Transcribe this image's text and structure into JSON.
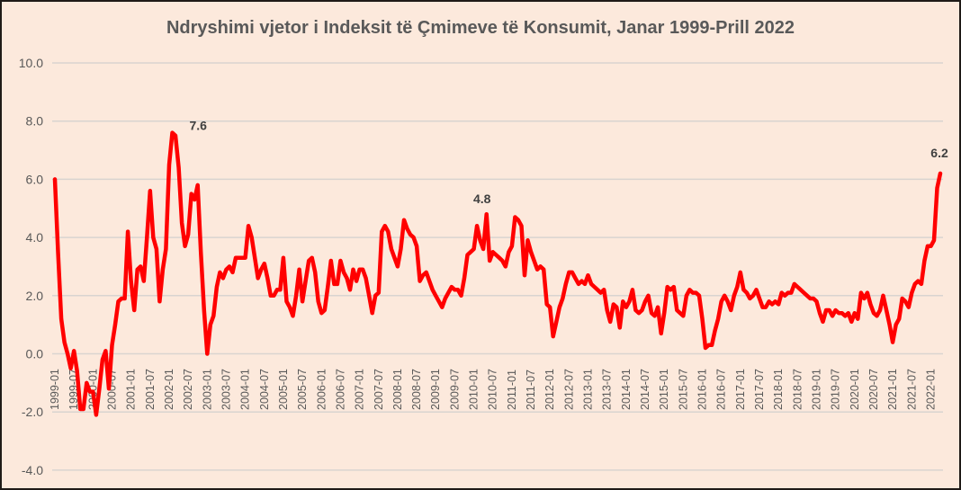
{
  "chart_data": {
    "type": "line",
    "title": "Ndryshimi vjetor i Indeksit të Çmimeve të Konsumit, Janar 1999-Prill 2022",
    "xlabel": "",
    "ylabel": "",
    "ylim": [
      -4.0,
      10.0
    ],
    "yticks": [
      "10.0",
      "8.0",
      "6.0",
      "4.0",
      "2.0",
      "0.0",
      "-2.0",
      "-4.0"
    ],
    "ytick_values": [
      10,
      8,
      6,
      4,
      2,
      0,
      -2,
      -4
    ],
    "grid": true,
    "legend": "none",
    "x_start": "1999-01",
    "x_end": "2022-04",
    "x_frequency": "monthly",
    "xtick_labels": [
      "1999-01",
      "1999-07",
      "2000-01",
      "2000-07",
      "2001-01",
      "2001-07",
      "2002-01",
      "2002-07",
      "2003-01",
      "2003-07",
      "2004-01",
      "2004-07",
      "2005-01",
      "2005-07",
      "2006-01",
      "2006-07",
      "2007-01",
      "2007-07",
      "2008-01",
      "2008-07",
      "2009-01",
      "2009-07",
      "2010-01",
      "2010-07",
      "2011-01",
      "2011-07",
      "2012-01",
      "2012-07",
      "2013-01",
      "2013-07",
      "2014-01",
      "2014-07",
      "2015-01",
      "2015-07",
      "2016-01",
      "2016-07",
      "2017-01",
      "2017-07",
      "2018-01",
      "2018-07",
      "2019-01",
      "2019-07",
      "2020-01",
      "2020-07",
      "2021-01",
      "2021-07",
      "2022-01"
    ],
    "series": [
      {
        "name": "Ndryshimi vjetor i IÇK",
        "color": "#ff0000",
        "values": [
          6.0,
          3.5,
          1.2,
          0.4,
          0.0,
          -0.5,
          0.1,
          -0.6,
          -1.9,
          -1.9,
          -1.0,
          -1.3,
          -1.3,
          -2.1,
          -1.2,
          -0.2,
          0.1,
          -1.2,
          0.3,
          1.0,
          1.8,
          1.9,
          1.9,
          4.2,
          2.5,
          1.5,
          2.9,
          3.0,
          2.5,
          4.0,
          5.6,
          4.0,
          3.6,
          1.8,
          2.9,
          3.6,
          6.5,
          7.6,
          7.5,
          6.4,
          4.5,
          3.7,
          4.1,
          5.5,
          5.3,
          5.8,
          3.5,
          1.5,
          0.0,
          1.0,
          1.3,
          2.3,
          2.8,
          2.6,
          2.9,
          3.0,
          2.8,
          3.3,
          3.3,
          3.3,
          3.3,
          4.4,
          4.0,
          3.3,
          2.6,
          2.9,
          3.1,
          2.6,
          2.0,
          2.0,
          2.2,
          2.2,
          3.3,
          1.8,
          1.6,
          1.3,
          2.0,
          2.9,
          1.8,
          2.5,
          3.2,
          3.3,
          2.8,
          1.8,
          1.4,
          1.5,
          2.3,
          3.2,
          2.4,
          2.4,
          3.2,
          2.8,
          2.6,
          2.2,
          2.9,
          2.5,
          2.9,
          2.9,
          2.6,
          2.0,
          1.4,
          2.0,
          2.1,
          4.2,
          4.4,
          4.2,
          3.6,
          3.3,
          3.0,
          3.6,
          4.6,
          4.3,
          4.1,
          4.0,
          3.7,
          2.5,
          2.7,
          2.8,
          2.5,
          2.2,
          2.0,
          1.8,
          1.6,
          1.9,
          2.1,
          2.3,
          2.2,
          2.2,
          2.0,
          2.6,
          3.4,
          3.5,
          3.6,
          4.4,
          3.9,
          3.6,
          4.8,
          3.2,
          3.5,
          3.4,
          3.3,
          3.2,
          3.0,
          3.5,
          3.7,
          4.7,
          4.6,
          4.4,
          2.7,
          3.9,
          3.5,
          3.2,
          2.9,
          3.0,
          2.9,
          1.7,
          1.6,
          0.6,
          1.1,
          1.6,
          1.9,
          2.4,
          2.8,
          2.8,
          2.6,
          2.4,
          2.5,
          2.4,
          2.7,
          2.4,
          2.3,
          2.2,
          2.1,
          2.2,
          1.5,
          1.1,
          1.7,
          1.6,
          0.9,
          1.8,
          1.6,
          1.8,
          2.2,
          1.5,
          1.4,
          1.5,
          1.8,
          2.0,
          1.4,
          1.3,
          1.6,
          0.7,
          1.4,
          2.3,
          2.2,
          2.3,
          1.5,
          1.4,
          1.3,
          2.0,
          2.2,
          2.1,
          2.1,
          2.0,
          1.2,
          0.2,
          0.3,
          0.3,
          0.8,
          1.2,
          1.8,
          2.0,
          1.8,
          1.5,
          2.0,
          2.3,
          2.8,
          2.2,
          2.1,
          1.9,
          2.0,
          2.2,
          1.9,
          1.6,
          1.6,
          1.8,
          1.7,
          1.8,
          1.7,
          2.1,
          2.0,
          2.1,
          2.1,
          2.4,
          2.3,
          2.2,
          2.1,
          2.0,
          1.9,
          1.9,
          1.8,
          1.4,
          1.1,
          1.5,
          1.5,
          1.3,
          1.5,
          1.4,
          1.4,
          1.3,
          1.4,
          1.1,
          1.4,
          1.2,
          2.1,
          1.9,
          2.1,
          1.7,
          1.4,
          1.3,
          1.5,
          2.0,
          1.5,
          1.0,
          0.4,
          1.0,
          1.2,
          1.9,
          1.8,
          1.6,
          2.1,
          2.4,
          2.5,
          2.4,
          3.2,
          3.7,
          3.7,
          3.9,
          5.7,
          6.2
        ]
      }
    ],
    "annotations": [
      {
        "label": "7.6",
        "date": "2002-02",
        "index": 37,
        "value": 7.6
      },
      {
        "label": "4.8",
        "date": "2010-05",
        "index": 136,
        "value": 4.8
      },
      {
        "label": "6.2",
        "date": "2022-04",
        "index": 279,
        "value": 6.2
      }
    ]
  }
}
